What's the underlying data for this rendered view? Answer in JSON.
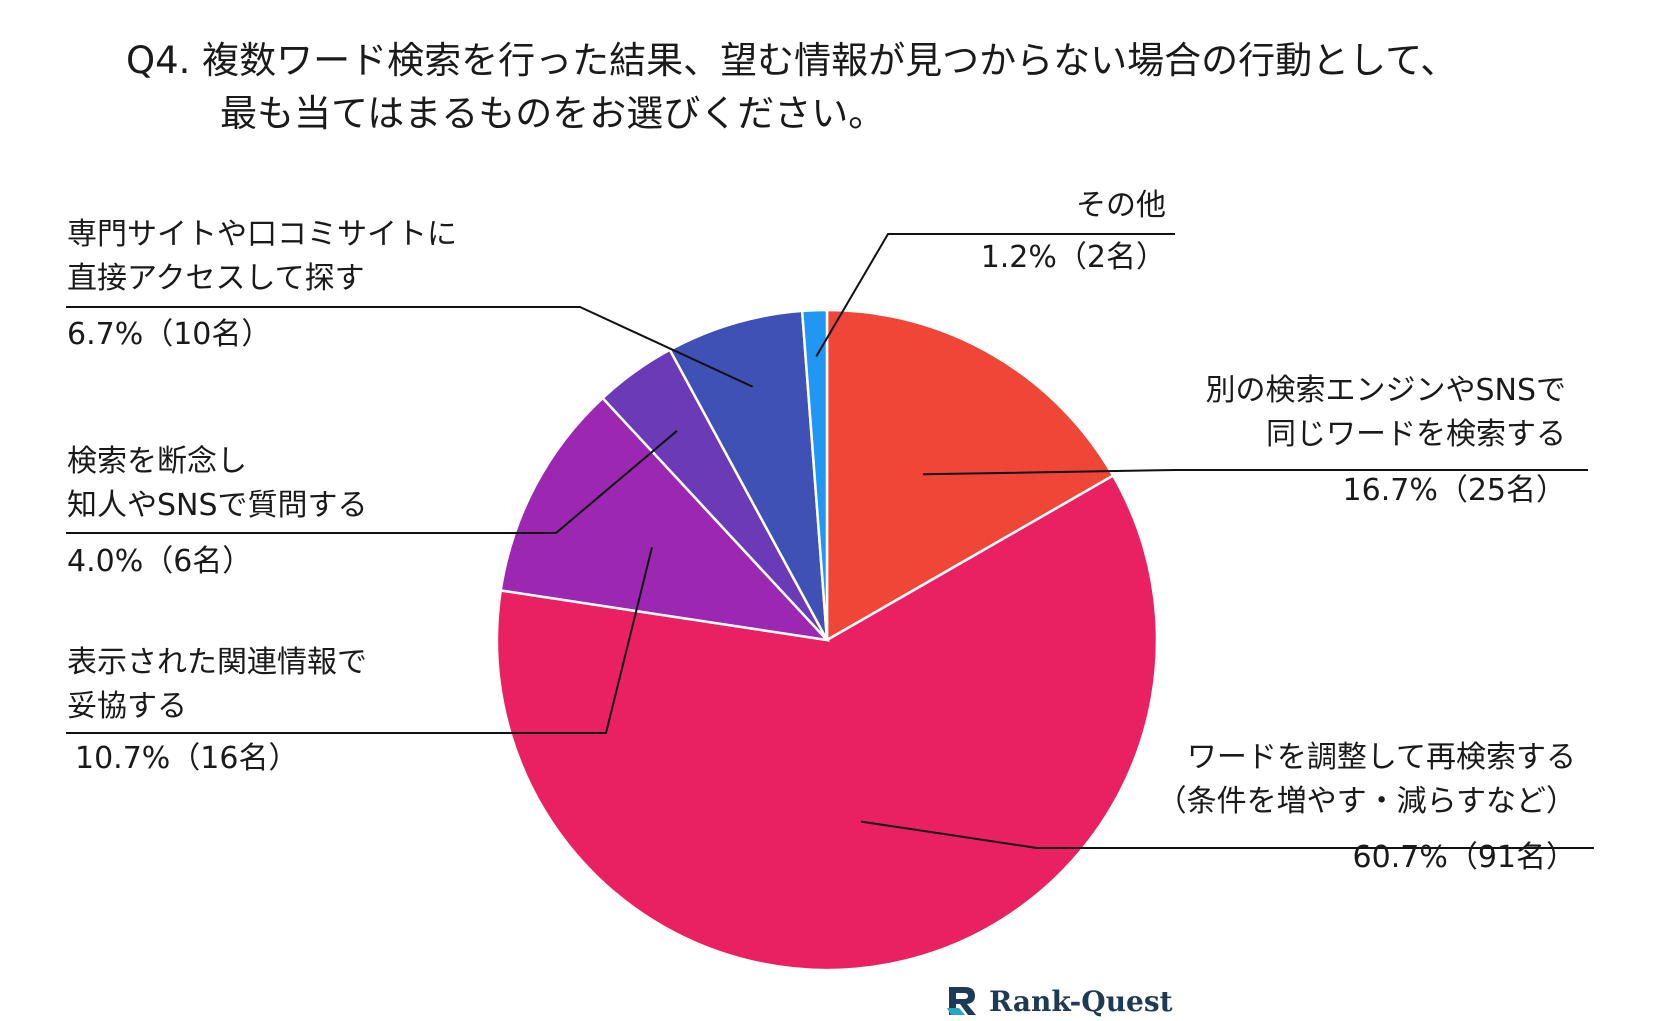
{
  "title": {
    "line1": "Q4. 複数ワード検索を行った結果、望む情報が見つからない場合の行動として、",
    "line2": "最も当てはまるものをお選びください。"
  },
  "chart_data": {
    "type": "pie",
    "slices": [
      {
        "label_lines": [
          "別の検索エンジンやSNSで",
          "同じワードを検索する"
        ],
        "value": 16.7,
        "count": 25,
        "value_label": "16.7%（25名）",
        "color": "#F04637"
      },
      {
        "label_lines": [
          "ワードを調整して再検索する",
          "（条件を増やす・減らすなど）"
        ],
        "value": 60.7,
        "count": 91,
        "value_label": "60.7%（91名）",
        "color": "#E92163"
      },
      {
        "label_lines": [
          "表示された関連情報で",
          "妥協する"
        ],
        "value": 10.7,
        "count": 16,
        "value_label": "10.7%（16名）",
        "color": "#9C27B0"
      },
      {
        "label_lines": [
          "検索を断念し",
          "知人やSNSで質問する"
        ],
        "value": 4.0,
        "count": 6,
        "value_label": "4.0%（6名）",
        "color": "#6A3AB7"
      },
      {
        "label_lines": [
          "専門サイトや口コミサイトに",
          "直接アクセスして探す"
        ],
        "value": 6.7,
        "count": 10,
        "value_label": "6.7%（10名）",
        "color": "#3F51B5"
      },
      {
        "label_lines": [
          "その他"
        ],
        "value": 1.2,
        "count": 2,
        "value_label": "1.2%（2名）",
        "color": "#2196F3"
      }
    ]
  },
  "logo": {
    "text": "Rank-Quest"
  }
}
